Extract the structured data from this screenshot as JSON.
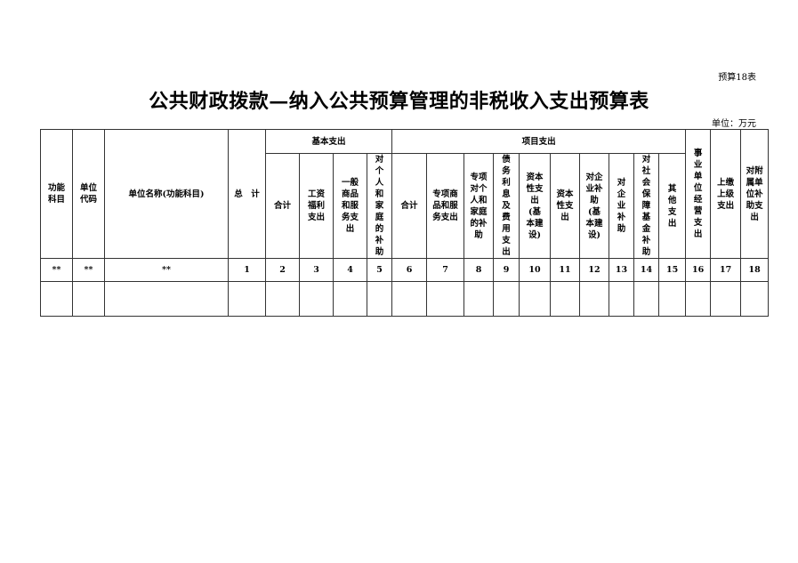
{
  "form_number": "预算18表",
  "title": "公共财政拨款—纳入公共预算管理的非税收入支出预算表",
  "unit": "单位：万元",
  "table": {
    "col_function": "功能\n科目",
    "col_code": "单位\n代码",
    "col_name": "单位名称(功能科目)",
    "col_total": "总　计",
    "group_basic": "基本支出",
    "group_project": "项目支出",
    "basic": [
      "合计",
      "工资\n福利\n支出",
      "一般\n商品\n和服\n务支\n出",
      "对\n个\n人\n和\n家\n庭\n的\n补\n助"
    ],
    "project": [
      "合计",
      "专项商\n品和服\n务支出",
      "专项\n对个\n人和\n家庭\n的补\n助",
      "债\n务\n利\n息\n及\n费\n用\n支\n出",
      "资本\n性支\n出\n(基\n本建\n设)",
      "资本\n性支\n出",
      "对企\n业补\n助\n(基\n本建\n设)",
      "对\n企\n业\n补\n助",
      "对\n社\n会\n保\n障\n基\n金\n补\n助",
      "其\n他\n支\n出"
    ],
    "col_enterprise": "事\n业\n单\n位\n经\n营\n支\n出",
    "col_upper": "上缴\n上级\n支出",
    "col_subsidy": "对附\n属单\n位补\n助支\n出",
    "index_row": [
      "**",
      "**",
      "**",
      "1",
      "2",
      "3",
      "4",
      "5",
      "6",
      "7",
      "8",
      "9",
      "10",
      "11",
      "12",
      "13",
      "14",
      "15",
      "16",
      "17",
      "18"
    ]
  }
}
